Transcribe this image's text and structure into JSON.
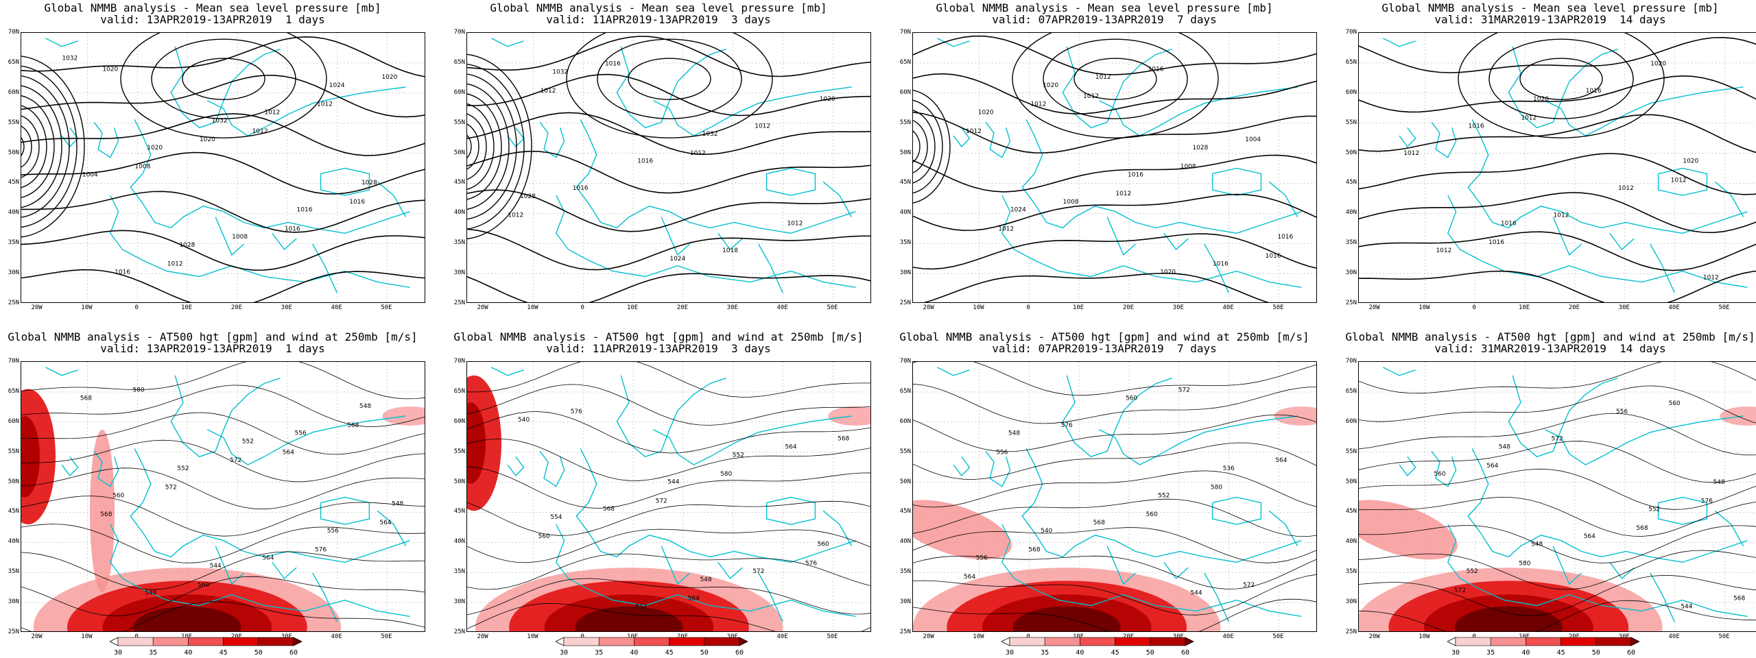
{
  "panels": [
    {
      "title": "Global NMMB analysis - Mean sea level pressure [mb]",
      "subtitle": "valid: 13APR2019-13APR2019  1 days",
      "kind": "mslp"
    },
    {
      "title": "Global NMMB analysis - Mean sea level pressure [mb]",
      "subtitle": "valid: 11APR2019-13APR2019  3 days",
      "kind": "mslp"
    },
    {
      "title": "Global NMMB analysis - Mean sea level pressure [mb]",
      "subtitle": "valid: 07APR2019-13APR2019  7 days",
      "kind": "mslp"
    },
    {
      "title": "Global NMMB analysis - Mean sea level pressure [mb]",
      "subtitle": "valid: 31MAR2019-13APR2019  14 days",
      "kind": "mslp"
    },
    {
      "title": "Global NMMB analysis - AT500 hgt [gpm] and wind at 250mb [m/s]",
      "subtitle": "valid: 13APR2019-13APR2019  1 days",
      "kind": "z500"
    },
    {
      "title": "Global NMMB analysis - AT500 hgt [gpm] and wind at 250mb [m/s]",
      "subtitle": "valid: 11APR2019-13APR2019  3 days",
      "kind": "z500"
    },
    {
      "title": "Global NMMB analysis - AT500 hgt [gpm] and wind at 250mb [m/s]",
      "subtitle": "valid: 07APR2019-13APR2019  7 days",
      "kind": "z500"
    },
    {
      "title": "Global NMMB analysis - AT500 hgt [gpm] and wind at 250mb [m/s]",
      "subtitle": "valid: 31MAR2019-13APR2019  14 days",
      "kind": "z500"
    }
  ],
  "lat_labels": [
    "70N",
    "65N",
    "60N",
    "55N",
    "50N",
    "45N",
    "40N",
    "35N",
    "30N",
    "25N"
  ],
  "lon_labels": [
    "20W",
    "10W",
    "0",
    "10E",
    "20E",
    "30E",
    "40E",
    "50E"
  ],
  "colorbar": {
    "ticks": [
      "30",
      "35",
      "40",
      "45",
      "50",
      "60"
    ],
    "colors": [
      "#ffffff",
      "#fbd0d0",
      "#f79090",
      "#f05050",
      "#e00000",
      "#b00000",
      "#700000"
    ]
  },
  "mslp_labels": [
    [
      "1032",
      "1032",
      "1028",
      "1028",
      "1024",
      "1020",
      "1016",
      "1016",
      "1012",
      "1004",
      "1008",
      "1020",
      "1020",
      "1016",
      "1012",
      "1012",
      "1008",
      "1016",
      "1020",
      "1012"
    ],
    [
      "1032",
      "1032",
      "1028",
      "1024",
      "1020",
      "1016",
      "1012",
      "1016",
      "1012",
      "1016",
      "1018",
      "1012",
      "1012",
      "1012"
    ],
    [
      "1020",
      "1028",
      "1024",
      "1020",
      "1020",
      "1016",
      "1016",
      "1012",
      "1004",
      "1008",
      "1016",
      "1012",
      "1008",
      "1012",
      "1016",
      "1012",
      "1012",
      "1016",
      "1012"
    ],
    [
      "1020",
      "1020",
      "1016",
      "1020",
      "1016",
      "1012",
      "1012",
      "1016",
      "1012",
      "1012",
      "1012",
      "1012",
      "1012",
      "1016"
    ]
  ],
  "z500_labels": [
    [
      "552",
      "548",
      "544",
      "548",
      "552",
      "556",
      "548",
      "556",
      "560",
      "564",
      "568",
      "572",
      "564",
      "560",
      "568",
      "572",
      "576",
      "580",
      "564",
      "568"
    ],
    [
      "552",
      "554",
      "548",
      "540",
      "544",
      "560",
      "552",
      "564",
      "568",
      "572",
      "576",
      "580",
      "560",
      "564",
      "568",
      "572",
      "576"
    ],
    [
      "536",
      "540",
      "544",
      "548",
      "552",
      "556",
      "560",
      "564",
      "568",
      "572",
      "576",
      "580",
      "568",
      "572",
      "556",
      "560",
      "564"
    ],
    [
      "548",
      "548",
      "544",
      "548",
      "552",
      "552",
      "556",
      "560",
      "564",
      "568",
      "572",
      "576",
      "580",
      "560",
      "564",
      "568",
      "572"
    ]
  ],
  "colors": {
    "isobar": "#000000",
    "coast": "#00c0d0",
    "grid": "#b0b0b0",
    "jet_dark": "#700000",
    "jet_mid": "#e00000",
    "jet_light": "#f79090"
  }
}
